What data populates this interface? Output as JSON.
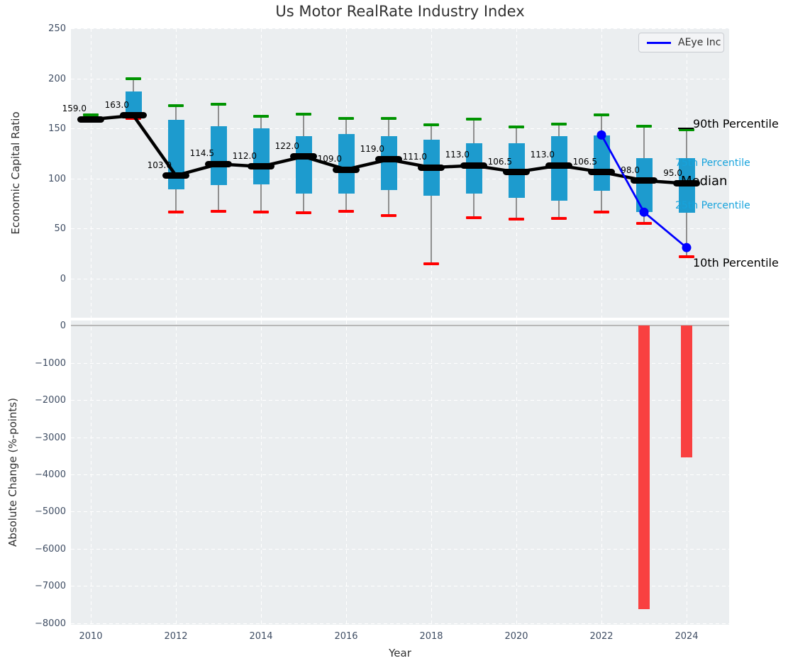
{
  "title": "Us Motor RealRate Industry Index",
  "legend": {
    "label": "AEye Inc",
    "line_color": "#0000ff",
    "position": "upper right"
  },
  "annotations": {
    "p90": "90th Percentile",
    "p75": "75th Percentile",
    "median": "Median",
    "p25": "25th Percentile",
    "p10": "10th Percentile"
  },
  "colors": {
    "box": "#1d9bce",
    "cap_top": "#009400",
    "cap_bottom": "#ff0000",
    "median_line": "#000000",
    "company_line": "#0000ff",
    "bar_negative": "#f94040",
    "cyan_text": "#17a3dc",
    "axes_background": "#ebeef0",
    "grid": "#ffffff",
    "tick_text": "#3f4d63",
    "whisker": "#8f8f8f"
  },
  "chart_data": [
    {
      "type": "boxplot-timeseries-with-line",
      "title": "Us Motor RealRate Industry Index",
      "ylabel": "Economic Capital Ratio",
      "ylim": [
        -39,
        250
      ],
      "yticks": {
        "values": [
          250,
          200,
          150,
          100,
          50,
          0
        ],
        "labels": [
          "250",
          "200",
          "150",
          "100",
          "50",
          "0"
        ]
      },
      "grid": "dashed-white-on-gray",
      "years": [
        2010,
        2011,
        2012,
        2013,
        2014,
        2015,
        2016,
        2017,
        2018,
        2019,
        2020,
        2021,
        2022,
        2023,
        2024
      ],
      "p90": [
        163.5,
        200,
        172.5,
        174,
        162.5,
        164,
        160,
        160,
        153.5,
        159.5,
        151.5,
        154.5,
        163.5,
        152.5,
        149
      ],
      "p75": [
        160.5,
        187,
        158.5,
        152.5,
        150,
        142.5,
        144.5,
        142,
        139,
        135,
        135,
        142.5,
        143,
        120.5,
        120.5
      ],
      "median": [
        159,
        163,
        103,
        114.5,
        112,
        122,
        109,
        119,
        111,
        113,
        106.5,
        113,
        106.5,
        98,
        95
      ],
      "p25": [
        158,
        161.5,
        89.5,
        93.5,
        94,
        85,
        85,
        88.5,
        82.5,
        85,
        81,
        78,
        87.5,
        66.5,
        66
      ],
      "p10": [
        157,
        160,
        66.5,
        67.5,
        66.5,
        66,
        67.5,
        63,
        15,
        61,
        59.5,
        60.5,
        66.5,
        55,
        22
      ],
      "median_labels": [
        "159.0",
        "163.0",
        "103.0",
        "114.5",
        "112.0",
        "122.0",
        "109.0",
        "119.0",
        "111.0",
        "113.0",
        "106.5",
        "113.0",
        "106.5",
        "98.0",
        "95.0"
      ],
      "company": {
        "name": "AEye Inc",
        "years": [
          2022,
          2023,
          2024
        ],
        "values": [
          143.5,
          66.4,
          31.0
        ]
      }
    },
    {
      "type": "bar",
      "ylabel": "Absolute Change (%-points)",
      "xlabel": "Year",
      "ylim": [
        -8043,
        139
      ],
      "yticks": {
        "values": [
          0,
          -1000,
          -2000,
          -3000,
          -4000,
          -5000,
          -6000,
          -7000,
          -8000
        ],
        "labels": [
          "0",
          "−1000",
          "−2000",
          "−3000",
          "−4000",
          "−5000",
          "−6000",
          "−7000",
          "−8000"
        ]
      },
      "xticks": {
        "values": [
          2010,
          2012,
          2014,
          2016,
          2018,
          2020,
          2022,
          2024
        ],
        "labels": [
          "2010",
          "2012",
          "2014",
          "2016",
          "2018",
          "2020",
          "2022",
          "2024"
        ]
      },
      "categories": [
        2023,
        2024
      ],
      "values": [
        -7620,
        -3540
      ],
      "zero_line": true
    }
  ]
}
